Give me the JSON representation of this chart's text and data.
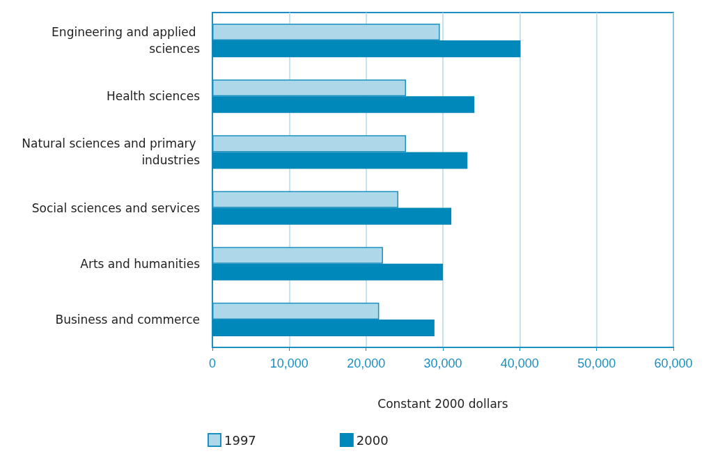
{
  "chart_data": {
    "type": "bar",
    "orientation": "horizontal",
    "xlabel": "Constant 2000 dollars",
    "categories": [
      "Engineering and applied sciences",
      "Health sciences",
      "Natural sciences and primary industries",
      "Social sciences and services",
      "Arts and humanities",
      "Business and commerce"
    ],
    "series": [
      {
        "name": "1997",
        "color": "#acd8ea",
        "values": [
          29600,
          25200,
          25200,
          24200,
          22200,
          21700
        ]
      },
      {
        "name": "2000",
        "color": "#0088bb",
        "values": [
          40100,
          34100,
          33200,
          31100,
          30000,
          28900
        ]
      }
    ],
    "xlim": [
      0,
      60000
    ],
    "xticks": [
      {
        "value": 0,
        "label": "0"
      },
      {
        "value": 10000,
        "label": "10,000"
      },
      {
        "value": 20000,
        "label": "20,000"
      },
      {
        "value": 30000,
        "label": "30,000"
      },
      {
        "value": 40000,
        "label": "40,000"
      },
      {
        "value": 50000,
        "label": "50,000"
      },
      {
        "value": 60000,
        "label": "60,000"
      }
    ],
    "grid": "x",
    "legend": "bottom"
  }
}
